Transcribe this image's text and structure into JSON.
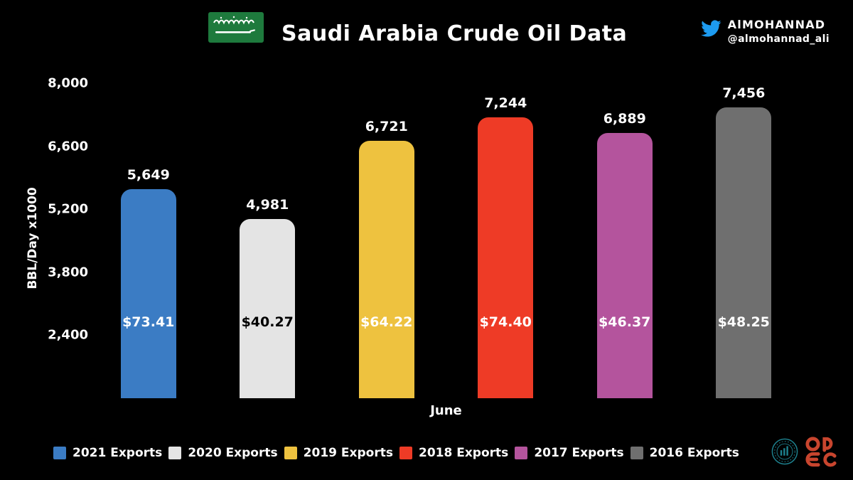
{
  "header": {
    "title": "Saudi Arabia Crude Oil Data",
    "author_name": "AlMOHANNAD",
    "author_handle": "@almohannad_ali"
  },
  "chart_data": {
    "type": "bar",
    "title": "Saudi Arabia Crude Oil Data",
    "xlabel": "June",
    "ylabel": "BBL/Day x1000",
    "ylim": [
      1000,
      8000
    ],
    "yticks": [
      2400,
      3800,
      5200,
      6600,
      8000
    ],
    "ytick_labels": [
      "2,400",
      "3,800",
      "5,200",
      "6,600",
      "8,000"
    ],
    "categories": [
      "2021 Exports",
      "2020 Exports",
      "2019 Exports",
      "2018 Exports",
      "2017 Exports",
      "2016 Exports"
    ],
    "values": [
      5649,
      4981,
      6721,
      7244,
      6889,
      7456
    ],
    "value_labels": [
      "5,649",
      "4,981",
      "6,721",
      "7,244",
      "6,889",
      "7,456"
    ],
    "price_labels": [
      "$73.41",
      "$40.27",
      "$64.22",
      "$74.40",
      "$46.37",
      "$48.25"
    ],
    "colors": [
      "#3b7cc4",
      "#e4e4e4",
      "#eec23f",
      "#ee3b26",
      "#b4549d",
      "#6f6f6f"
    ],
    "grid": false,
    "legend_position": "bottom"
  },
  "footer": {
    "logos": [
      "teal-emblem-logo",
      "opec-logo"
    ]
  }
}
